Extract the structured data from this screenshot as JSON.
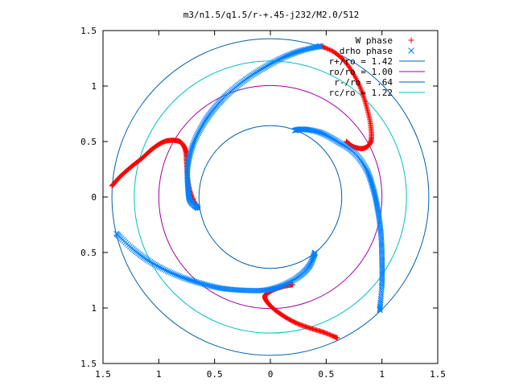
{
  "chart_data": {
    "type": "scatter",
    "title": "m3/n1.5/q1.5/r-+.45-j232/M2.0/512",
    "xlabel": "",
    "ylabel": "",
    "xlim": [
      -1.5,
      1.5
    ],
    "ylim": [
      -1.5,
      1.5
    ],
    "x_ticks": [
      -1.5,
      -1,
      -0.5,
      0,
      0.5,
      1,
      1.5
    ],
    "x_tick_labels": [
      "1.5",
      "1",
      "0.5",
      "0",
      "0.5",
      "1",
      "1.5"
    ],
    "y_ticks": [
      1.5,
      1,
      0.5,
      0,
      -0.5,
      -1,
      -1.5
    ],
    "y_tick_labels": [
      "1.5",
      "1",
      "0.5",
      "0",
      "0.5",
      "1",
      "1.5"
    ],
    "grid": false,
    "legend_position": "top-right",
    "legend": [
      {
        "label": "W phase",
        "marker": "+",
        "color": "#ff0000"
      },
      {
        "label": "drho phase",
        "marker": "x",
        "color": "#0080ff"
      },
      {
        "label": "r+/ro = 1.42",
        "color": "#0060ad"
      },
      {
        "label": "ro/ro = 1.00",
        "color": "#a000a0"
      },
      {
        "label": "r-/ro = .64",
        "color": "#0060ad"
      },
      {
        "label": "rc/ro = 1.22",
        "color": "#00c0c0"
      }
    ],
    "circles": [
      {
        "name": "r+/ro = 1.42",
        "r": 1.42,
        "color": "#0060ad"
      },
      {
        "name": "ro/ro = 1.00",
        "r": 1.0,
        "color": "#a000a0"
      },
      {
        "name": "r-/ro = .64",
        "r": 0.64,
        "color": "#0060ad"
      },
      {
        "name": "rc/ro = 1.22",
        "r": 1.22,
        "color": "#00c0c0"
      }
    ],
    "series": [
      {
        "name": "W phase",
        "color": "#ff0000",
        "marker": "+",
        "curves": [
          [
            [
              -1.42,
              0.1
            ],
            [
              -1.35,
              0.18
            ],
            [
              -1.25,
              0.27
            ],
            [
              -1.15,
              0.35
            ],
            [
              -1.05,
              0.44
            ],
            [
              -0.95,
              0.5
            ],
            [
              -0.86,
              0.51
            ],
            [
              -0.8,
              0.49
            ],
            [
              -0.76,
              0.42
            ],
            [
              -0.75,
              0.3
            ],
            [
              -0.74,
              0.15
            ],
            [
              -0.71,
              0.02
            ],
            [
              -0.65,
              -0.1
            ]
          ],
          [
            [
              0.45,
              1.36
            ],
            [
              0.58,
              1.3
            ],
            [
              0.7,
              1.18
            ],
            [
              0.8,
              1.0
            ],
            [
              0.86,
              0.82
            ],
            [
              0.9,
              0.64
            ],
            [
              0.9,
              0.5
            ],
            [
              0.84,
              0.44
            ],
            [
              0.75,
              0.45
            ],
            [
              0.68,
              0.5
            ]
          ],
          [
            [
              0.6,
              -1.27
            ],
            [
              0.48,
              -1.22
            ],
            [
              0.35,
              -1.18
            ],
            [
              0.22,
              -1.13
            ],
            [
              0.1,
              -1.06
            ],
            [
              0.0,
              -0.98
            ],
            [
              -0.05,
              -0.9
            ],
            [
              0.0,
              -0.85
            ],
            [
              0.1,
              -0.81
            ],
            [
              0.2,
              -0.79
            ]
          ]
        ]
      },
      {
        "name": "drho phase",
        "color": "#0080ff",
        "marker": "x",
        "curves": [
          [
            [
              -0.65,
              -0.1
            ],
            [
              -0.72,
              -0.03
            ],
            [
              -0.74,
              0.1
            ],
            [
              -0.74,
              0.28
            ],
            [
              -0.69,
              0.48
            ],
            [
              -0.6,
              0.66
            ],
            [
              -0.5,
              0.8
            ],
            [
              -0.38,
              0.93
            ],
            [
              -0.22,
              1.06
            ],
            [
              -0.05,
              1.17
            ],
            [
              0.12,
              1.26
            ],
            [
              0.28,
              1.32
            ],
            [
              0.45,
              1.36
            ]
          ],
          [
            [
              0.22,
              0.6
            ],
            [
              0.3,
              0.61
            ],
            [
              0.45,
              0.58
            ],
            [
              0.6,
              0.5
            ],
            [
              0.75,
              0.4
            ],
            [
              0.86,
              0.25
            ],
            [
              0.92,
              0.08
            ],
            [
              0.96,
              -0.1
            ],
            [
              0.99,
              -0.32
            ],
            [
              1.0,
              -0.55
            ],
            [
              1.0,
              -0.78
            ],
            [
              0.98,
              -1.02
            ]
          ],
          [
            [
              0.4,
              -0.5
            ],
            [
              0.35,
              -0.62
            ],
            [
              0.25,
              -0.72
            ],
            [
              0.1,
              -0.8
            ],
            [
              -0.05,
              -0.84
            ],
            [
              -0.25,
              -0.84
            ],
            [
              -0.45,
              -0.82
            ],
            [
              -0.65,
              -0.77
            ],
            [
              -0.85,
              -0.7
            ],
            [
              -1.05,
              -0.6
            ],
            [
              -1.22,
              -0.48
            ],
            [
              -1.38,
              -0.33
            ]
          ]
        ]
      }
    ]
  }
}
